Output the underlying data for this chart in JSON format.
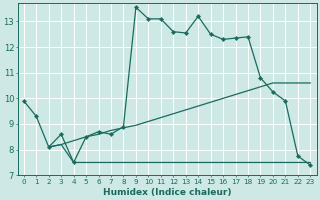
{
  "xlabel": "Humidex (Indice chaleur)",
  "bg_color": "#cde8e5",
  "grid_color": "#ffffff",
  "line_color": "#1a6b5e",
  "xlim": [
    -0.5,
    23.5
  ],
  "ylim": [
    7.0,
    13.7
  ],
  "yticks": [
    7,
    8,
    9,
    10,
    11,
    12,
    13
  ],
  "xticks": [
    0,
    1,
    2,
    3,
    4,
    5,
    6,
    7,
    8,
    9,
    10,
    11,
    12,
    13,
    14,
    15,
    16,
    17,
    18,
    19,
    20,
    21,
    22,
    23
  ],
  "line1_x": [
    0,
    1,
    2,
    3,
    4,
    5,
    6,
    7,
    8,
    9,
    10,
    11,
    12,
    13,
    14,
    15,
    16,
    17,
    18,
    19,
    20,
    21,
    22,
    23
  ],
  "line1_y": [
    9.9,
    9.3,
    8.1,
    8.6,
    7.5,
    8.5,
    8.7,
    8.6,
    8.9,
    13.55,
    13.1,
    13.1,
    12.6,
    12.55,
    13.2,
    12.5,
    12.3,
    12.35,
    12.4,
    10.8,
    10.25,
    9.9,
    7.75,
    7.4
  ],
  "line2_full_x": [
    2,
    3,
    4,
    5,
    6,
    7,
    8,
    9,
    10,
    11,
    12,
    13,
    14,
    15,
    16,
    17,
    18,
    19,
    20,
    21,
    22,
    23
  ],
  "line2_full_y": [
    8.1,
    8.2,
    7.5,
    7.5,
    7.5,
    7.5,
    7.5,
    7.5,
    7.5,
    7.5,
    7.5,
    7.5,
    7.5,
    7.5,
    7.5,
    7.5,
    7.5,
    7.5,
    7.5,
    7.5,
    7.5,
    7.5
  ],
  "line3_x": [
    2,
    3,
    4,
    5,
    6,
    7,
    8,
    9,
    10,
    11,
    12,
    13,
    14,
    15,
    16,
    17,
    18,
    19,
    20,
    21,
    22,
    23
  ],
  "line3_y": [
    8.1,
    8.2,
    8.35,
    8.5,
    8.6,
    8.75,
    8.85,
    8.95,
    9.1,
    9.25,
    9.4,
    9.55,
    9.7,
    9.85,
    10.0,
    10.15,
    10.3,
    10.45,
    10.6,
    10.6,
    10.6,
    10.6
  ]
}
